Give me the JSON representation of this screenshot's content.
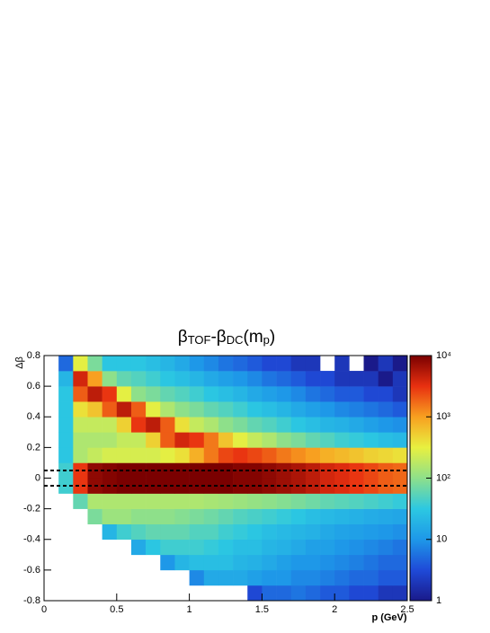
{
  "chart_data": {
    "type": "heatmap",
    "title": [
      {
        "text": "β"
      },
      {
        "text": "TOF",
        "sub": true
      },
      {
        "text": "-β"
      },
      {
        "text": "DC",
        "sub": true
      },
      {
        "text": "(m"
      },
      {
        "text": "p",
        "sub": true
      },
      {
        "text": ")"
      }
    ],
    "xlabel": "p (GeV)",
    "ylabel": "Δβ",
    "xlim": [
      0,
      2.5
    ],
    "ylim": [
      -0.8,
      0.8
    ],
    "xticks": [
      0,
      0.5,
      1,
      1.5,
      2,
      2.5
    ],
    "yticks": [
      -0.8,
      -0.6,
      -0.4,
      -0.2,
      0,
      0.2,
      0.4,
      0.6,
      0.8
    ],
    "xbins": [
      0,
      0.1,
      0.2,
      0.3,
      0.4,
      0.5,
      0.6,
      0.7,
      0.8,
      0.9,
      1,
      1.1,
      1.2,
      1.3,
      1.4,
      1.5,
      1.6,
      1.7,
      1.8,
      1.9,
      2,
      2.1,
      2.2,
      2.3,
      2.4,
      2.5
    ],
    "ybins": [
      -0.8,
      -0.7,
      -0.6,
      -0.5,
      -0.4,
      -0.3,
      -0.2,
      -0.1,
      0,
      0.1,
      0.2,
      0.3,
      0.4,
      0.5,
      0.6,
      0.7,
      0.8
    ],
    "z": [
      [
        null,
        null,
        null,
        null,
        null,
        null,
        null,
        null,
        null,
        null,
        null,
        null,
        null,
        null,
        3,
        5,
        5,
        6,
        5,
        4,
        4,
        3,
        3,
        2,
        2
      ],
      [
        null,
        null,
        null,
        null,
        null,
        null,
        null,
        null,
        null,
        null,
        8,
        15,
        15,
        15,
        12,
        10,
        10,
        8,
        8,
        7,
        6,
        5,
        5,
        4,
        4
      ],
      [
        null,
        null,
        null,
        null,
        null,
        null,
        null,
        null,
        10,
        20,
        25,
        25,
        25,
        20,
        18,
        15,
        12,
        10,
        10,
        9,
        8,
        7,
        6,
        5,
        5
      ],
      [
        null,
        null,
        null,
        null,
        null,
        null,
        15,
        30,
        40,
        40,
        40,
        35,
        30,
        25,
        25,
        20,
        18,
        15,
        12,
        12,
        10,
        9,
        8,
        7,
        6
      ],
      [
        null,
        null,
        null,
        null,
        20,
        40,
        50,
        60,
        60,
        60,
        50,
        50,
        40,
        35,
        30,
        25,
        22,
        20,
        18,
        15,
        13,
        12,
        11,
        10,
        9
      ],
      [
        null,
        null,
        null,
        80,
        120,
        120,
        100,
        100,
        100,
        90,
        80,
        70,
        60,
        50,
        45,
        40,
        35,
        30,
        25,
        22,
        20,
        18,
        16,
        15,
        14
      ],
      [
        null,
        null,
        60,
        150,
        150,
        150,
        150,
        150,
        150,
        150,
        150,
        140,
        130,
        120,
        110,
        100,
        90,
        80,
        70,
        60,
        55,
        50,
        45,
        40,
        35
      ],
      [
        null,
        40,
        3000,
        8000,
        9000,
        10000,
        10000,
        10000,
        10000,
        10000,
        10000,
        10000,
        10000,
        9000,
        9000,
        8000,
        7000,
        6000,
        5000,
        4000,
        3500,
        3000,
        2500,
        2000,
        1800
      ],
      [
        null,
        40,
        3000,
        8000,
        9000,
        10000,
        10000,
        10000,
        10000,
        10000,
        10000,
        10000,
        10000,
        9000,
        9000,
        8000,
        7000,
        6000,
        5000,
        4000,
        3500,
        3000,
        2500,
        2000,
        1800
      ],
      [
        null,
        30,
        150,
        200,
        250,
        250,
        250,
        250,
        300,
        400,
        800,
        1500,
        2500,
        3000,
        2500,
        2000,
        1500,
        1200,
        1000,
        800,
        700,
        600,
        500,
        450,
        400
      ],
      [
        null,
        30,
        150,
        150,
        150,
        200,
        200,
        500,
        2000,
        4000,
        3000,
        1500,
        600,
        300,
        200,
        150,
        100,
        80,
        60,
        50,
        40,
        35,
        30,
        25,
        22
      ],
      [
        null,
        30,
        200,
        200,
        200,
        500,
        3000,
        5000,
        2000,
        400,
        200,
        150,
        100,
        80,
        60,
        50,
        40,
        30,
        25,
        20,
        18,
        15,
        12,
        10,
        9
      ],
      [
        null,
        30,
        400,
        600,
        2000,
        5000,
        2000,
        300,
        150,
        100,
        80,
        60,
        50,
        40,
        30,
        25,
        20,
        15,
        12,
        10,
        8,
        7,
        6,
        5,
        4
      ],
      [
        null,
        30,
        2000,
        5000,
        3000,
        300,
        100,
        80,
        60,
        50,
        40,
        30,
        25,
        20,
        15,
        12,
        10,
        8,
        6,
        5,
        4,
        4,
        3,
        3,
        2
      ],
      [
        null,
        20,
        4000,
        1000,
        100,
        60,
        50,
        40,
        30,
        25,
        20,
        15,
        12,
        10,
        8,
        6,
        5,
        4,
        3,
        3,
        2,
        2,
        2,
        1,
        2
      ],
      [
        null,
        5,
        300,
        80,
        30,
        30,
        30,
        25,
        20,
        15,
        10,
        8,
        6,
        5,
        4,
        3,
        3,
        2,
        2,
        null,
        2,
        null,
        1,
        2,
        1
      ]
    ],
    "hlines": [
      0.05,
      -0.05
    ],
    "zlim": [
      1,
      10000
    ],
    "zlog": true,
    "zticks": [
      1,
      10,
      {
        "value": 100,
        "label": "10²"
      },
      {
        "value": 1000,
        "label": "10³"
      },
      {
        "value": 10000,
        "label": "10⁴"
      }
    ],
    "colorscale": [
      "#1a1a8a",
      "#1f4ad8",
      "#1e98e8",
      "#2cc8e2",
      "#8ee08a",
      "#e8f040",
      "#f8a020",
      "#e83010",
      "#7a0000"
    ]
  }
}
